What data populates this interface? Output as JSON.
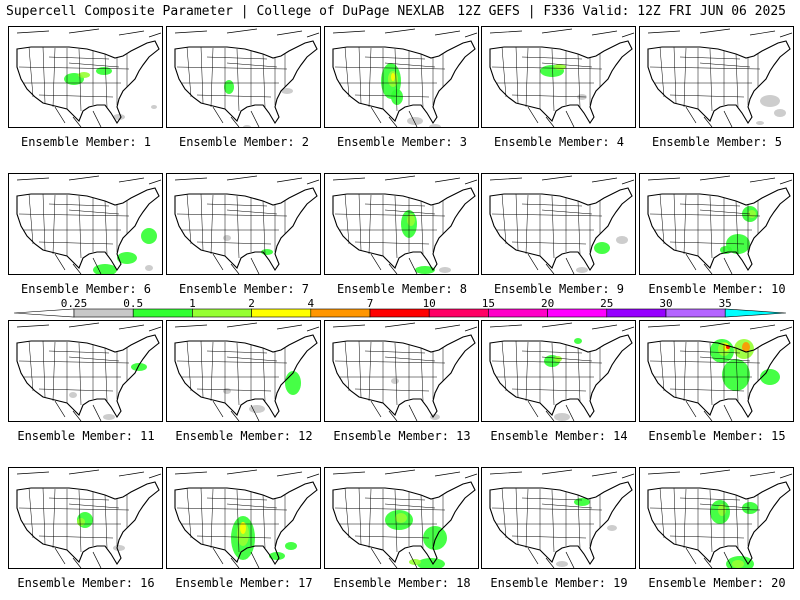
{
  "header": {
    "title_left": "Supercell Composite Parameter | College of DuPage NEXLAB",
    "title_right": "12Z GEFS | F336 Valid: 12Z FRI JUN 06 2025"
  },
  "colorbar": {
    "ticks": [
      "0.25",
      "0.5",
      "1",
      "2",
      "4",
      "7",
      "10",
      "15",
      "20",
      "25",
      "30",
      "35"
    ],
    "colors": [
      "#c8c8c8",
      "#32ff32",
      "#96ff32",
      "#ffff00",
      "#ff9600",
      "#ff0000",
      "#ff0064",
      "#ff00c8",
      "#ff00ff",
      "#9600ff",
      "#b464ff",
      "#00ffff"
    ]
  },
  "panels": [
    {
      "label": "Ensemble Member: 1"
    },
    {
      "label": "Ensemble Member: 2"
    },
    {
      "label": "Ensemble Member: 3"
    },
    {
      "label": "Ensemble Member: 4"
    },
    {
      "label": "Ensemble Member: 5"
    },
    {
      "label": "Ensemble Member: 6"
    },
    {
      "label": "Ensemble Member: 7"
    },
    {
      "label": "Ensemble Member: 8"
    },
    {
      "label": "Ensemble Member: 9"
    },
    {
      "label": "Ensemble Member: 10"
    },
    {
      "label": "Ensemble Member: 11"
    },
    {
      "label": "Ensemble Member: 12"
    },
    {
      "label": "Ensemble Member: 13"
    },
    {
      "label": "Ensemble Member: 14"
    },
    {
      "label": "Ensemble Member: 15"
    },
    {
      "label": "Ensemble Member: 16"
    },
    {
      "label": "Ensemble Member: 17"
    },
    {
      "label": "Ensemble Member: 18"
    },
    {
      "label": "Ensemble Member: 19"
    },
    {
      "label": "Ensemble Member: 20"
    }
  ]
}
